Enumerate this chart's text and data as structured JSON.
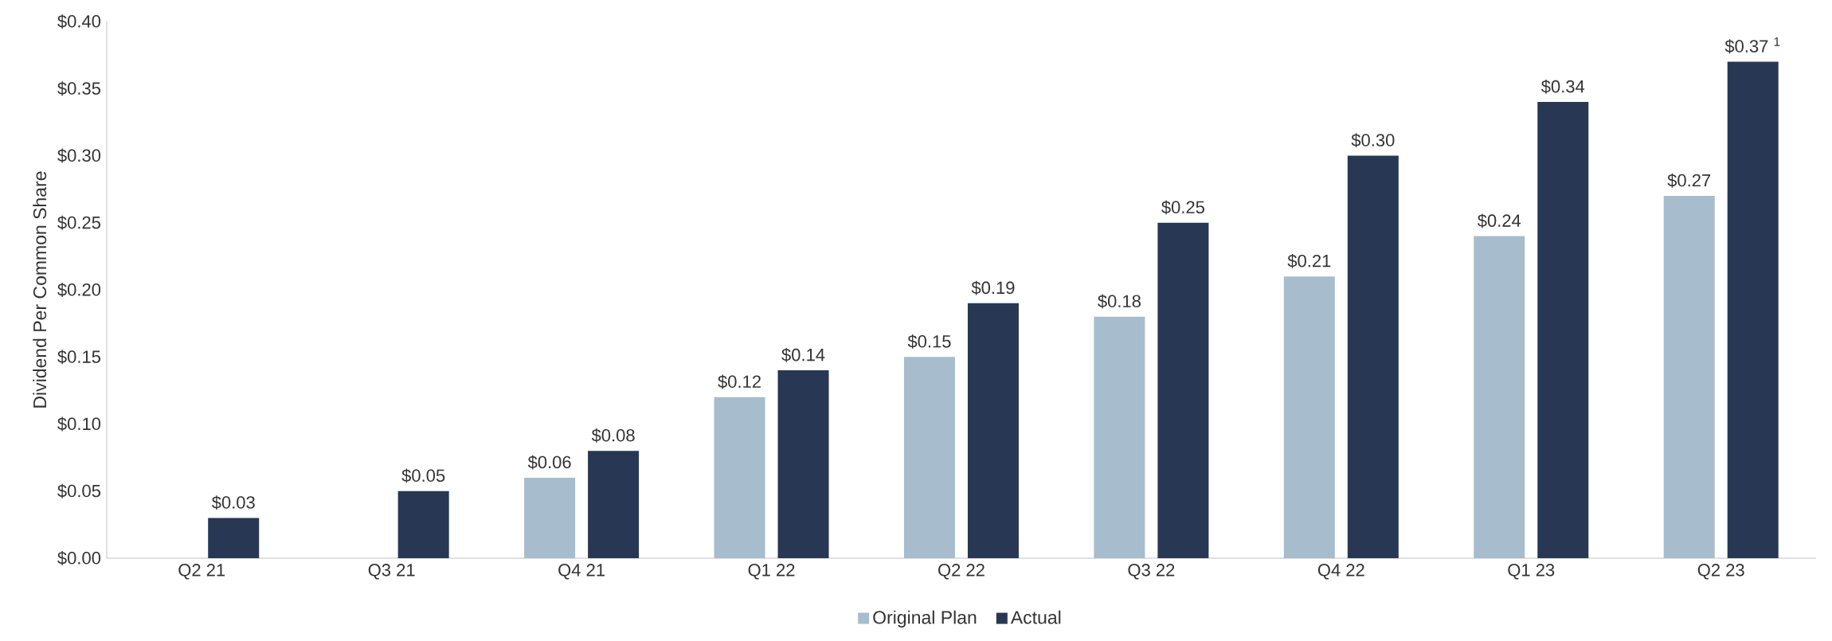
{
  "chart_data": {
    "type": "bar",
    "ylabel": "Dividend Per Common Share",
    "categories": [
      "Q2 21",
      "Q3 21",
      "Q4 21",
      "Q1 22",
      "Q2 22",
      "Q3 22",
      "Q4 22",
      "Q1 23",
      "Q2 23"
    ],
    "series": [
      {
        "name": "Original Plan",
        "color": "#a7bccc",
        "values": [
          null,
          null,
          0.06,
          0.12,
          0.15,
          0.18,
          0.21,
          0.24,
          0.27
        ],
        "value_labels": [
          null,
          null,
          "$0.06",
          "$0.12",
          "$0.15",
          "$0.18",
          "$0.21",
          "$0.24",
          "$0.27"
        ]
      },
      {
        "name": "Actual",
        "color": "#283753",
        "values": [
          0.03,
          0.05,
          0.08,
          0.14,
          0.19,
          0.25,
          0.3,
          0.34,
          0.37
        ],
        "value_labels": [
          "$0.03",
          "$0.05",
          "$0.08",
          "$0.14",
          "$0.19",
          "$0.25",
          "$0.30",
          "$0.34",
          "$0.37 $^{1}$"
        ]
      }
    ],
    "ylim": [
      0,
      0.4
    ],
    "yticks": [
      {
        "value": 0,
        "label": "$0.00"
      },
      {
        "value": 0.05,
        "label": "$0.05"
      },
      {
        "value": 0.1,
        "label": "$0.10"
      },
      {
        "value": 0.15,
        "label": "$0.15"
      },
      {
        "value": 0.2,
        "label": "$0.20"
      },
      {
        "value": 0.25,
        "label": "$0.25"
      },
      {
        "value": 0.3,
        "label": "$0.30"
      },
      {
        "value": 0.35,
        "label": "$0.35"
      },
      {
        "value": 0.4,
        "label": "$0.40"
      }
    ],
    "grid": false,
    "legend": "bottom"
  }
}
